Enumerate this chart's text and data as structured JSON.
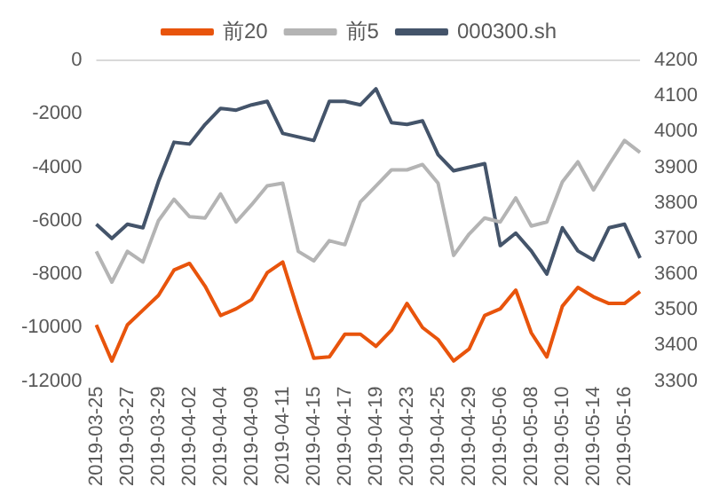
{
  "chart_data": {
    "type": "line",
    "categories": [
      "2019-03-25",
      null,
      "2019-03-27",
      null,
      "2019-03-29",
      null,
      "2019-04-02",
      null,
      "2019-04-04",
      null,
      "2019-04-09",
      null,
      "2019-04-11",
      null,
      "2019-04-15",
      null,
      "2019-04-17",
      null,
      "2019-04-19",
      null,
      "2019-04-23",
      null,
      "2019-04-25",
      null,
      "2019-04-29",
      null,
      "2019-05-06",
      null,
      "2019-05-08",
      null,
      "2019-05-10",
      null,
      "2019-05-14",
      null,
      "2019-05-16",
      null
    ],
    "series": [
      {
        "name": "前20",
        "color": "#e8540c",
        "values": [
          -9900,
          -11250,
          -9900,
          -9350,
          -8800,
          -7850,
          -7600,
          -8450,
          -9550,
          -9300,
          -8950,
          -7950,
          -7550,
          -9400,
          -11150,
          -11100,
          -10250,
          -10250,
          -10700,
          -10100,
          -9100,
          -10000,
          -10450,
          -11250,
          -10800,
          -9550,
          -9300,
          -8600,
          -10200,
          -11100,
          -9200,
          -8500,
          -8850,
          -9100,
          -9100,
          -8650
        ]
      },
      {
        "name": "前5",
        "color": "#b4b4b4",
        "values": [
          -7150,
          -8300,
          -7150,
          -7550,
          -6000,
          -5200,
          -5850,
          -5900,
          -5000,
          -6050,
          -5400,
          -4700,
          -4600,
          -7150,
          -7500,
          -6750,
          -6900,
          -5300,
          -4700,
          -4100,
          -4100,
          -3900,
          -4600,
          -7300,
          -6500,
          -5900,
          -6050,
          -5150,
          -6200,
          -6050,
          -4550,
          -3800,
          -4850,
          -3900,
          -3000,
          -3450
        ]
      },
      {
        "name": "000300.sh",
        "color": "#44546a",
        "axis": "y2",
        "values": [
          3740,
          3700,
          3740,
          3730,
          3860,
          3970,
          3965,
          4020,
          4065,
          4060,
          4075,
          4085,
          3995,
          3985,
          3975,
          4085,
          4085,
          4075,
          4120,
          4025,
          4020,
          4030,
          3935,
          3890,
          3900,
          3910,
          3680,
          3715,
          3665,
          3600,
          3730,
          3665,
          3640,
          3730,
          3740,
          3645
        ]
      }
    ],
    "ylim": [
      -12000,
      0
    ],
    "yticks": [
      -12000,
      -10000,
      -8000,
      -6000,
      -4000,
      -2000,
      0
    ],
    "y2lim": [
      3300,
      4200
    ],
    "y2ticks": [
      3300,
      3400,
      3500,
      3600,
      3700,
      3800,
      3900,
      4000,
      4100,
      4200
    ],
    "ref_lines": [
      {
        "axis": "y",
        "value": 0,
        "color": "#d9d9d9"
      }
    ],
    "grid": false,
    "legend": "top",
    "marker": "none",
    "line_style": "solid"
  }
}
